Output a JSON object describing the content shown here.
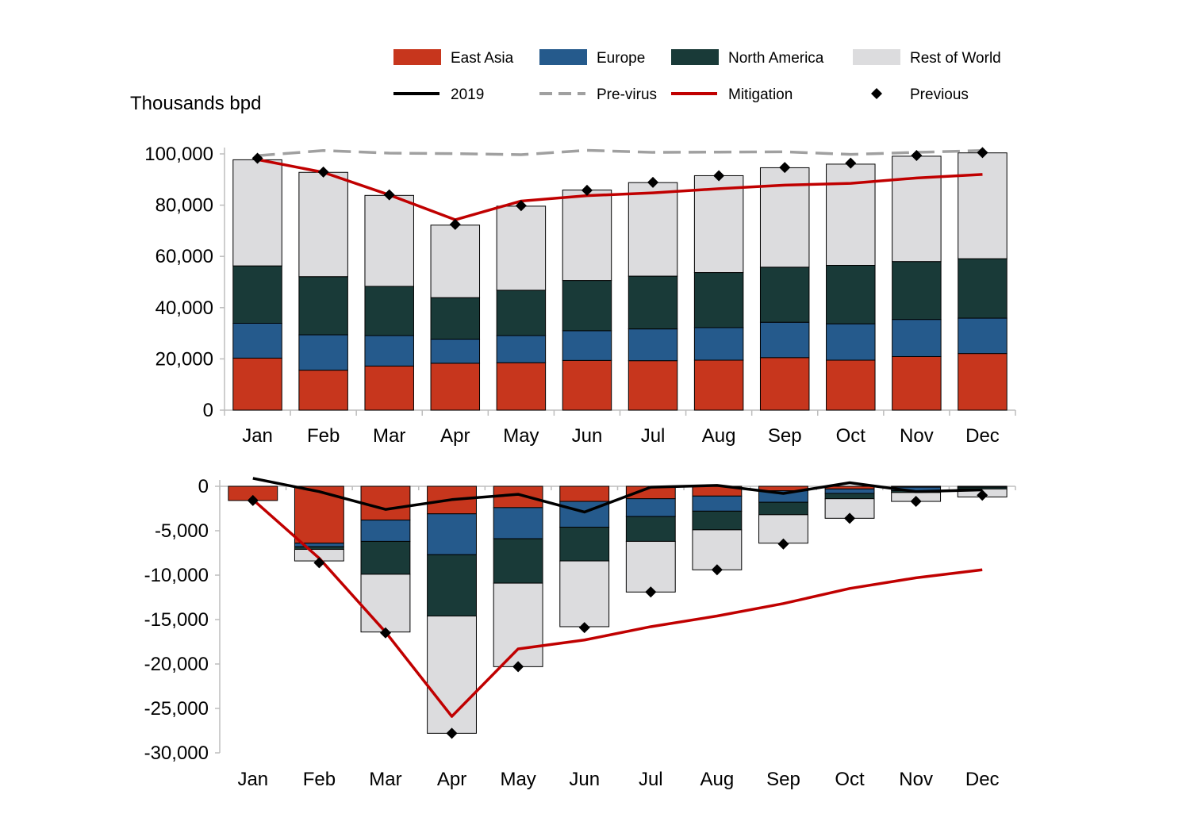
{
  "chart_data": [
    {
      "type": "bar",
      "stacked": true,
      "ylabel": "Thousands bpd",
      "ylim": [
        0,
        100000
      ],
      "yticks": [
        0,
        20000,
        40000,
        60000,
        80000,
        100000
      ],
      "ytick_labels": [
        "0",
        "20,000",
        "40,000",
        "60,000",
        "80,000",
        "100,000"
      ],
      "categories": [
        "Jan",
        "Feb",
        "Mar",
        "Apr",
        "May",
        "Jun",
        "Jul",
        "Aug",
        "Sep",
        "Oct",
        "Nov",
        "Dec"
      ],
      "series": [
        {
          "name": "East Asia",
          "color": "#c7361d",
          "values": [
            20300,
            15600,
            17200,
            18300,
            18500,
            19400,
            19300,
            19500,
            20500,
            19500,
            20900,
            22100
          ]
        },
        {
          "name": "Europe",
          "color": "#255a8c",
          "values": [
            13600,
            13800,
            11900,
            9400,
            10600,
            11600,
            12400,
            12700,
            13800,
            14200,
            14500,
            13800
          ]
        },
        {
          "name": "North America",
          "color": "#193a38",
          "values": [
            22400,
            22700,
            19200,
            16200,
            17700,
            19600,
            20600,
            21500,
            21500,
            22800,
            22600,
            23200
          ]
        },
        {
          "name": "Rest of World",
          "color": "#dcdcde",
          "values": [
            41400,
            40700,
            35500,
            28300,
            32800,
            35300,
            36500,
            37800,
            38800,
            39500,
            41100,
            41300
          ]
        }
      ],
      "lines": [
        {
          "name": "Pre-virus",
          "color": "#a0a0a0",
          "style": "dashed",
          "values": [
            99300,
            101300,
            100300,
            100100,
            99700,
            101400,
            100600,
            100700,
            100800,
            99800,
            100600,
            101300
          ]
        },
        {
          "name": "Mitigation",
          "color": "#c00000",
          "style": "solid",
          "values": [
            97800,
            92800,
            84000,
            74300,
            81600,
            83700,
            84800,
            86400,
            87800,
            88500,
            90600,
            92000
          ]
        }
      ],
      "markers": {
        "name": "Previous",
        "color": "#000000",
        "values": [
          98300,
          92900,
          84000,
          72500,
          79800,
          85800,
          88900,
          91500,
          94700,
          96400,
          99400,
          100500
        ]
      }
    },
    {
      "type": "bar",
      "stacked": true,
      "ylim": [
        -30000,
        0
      ],
      "yticks": [
        0,
        -5000,
        -10000,
        -15000,
        -20000,
        -25000,
        -30000
      ],
      "ytick_labels": [
        "0",
        "-5,000",
        "-10,000",
        "-15,000",
        "-20,000",
        "-25,000",
        "-30,000"
      ],
      "categories": [
        "Jan",
        "Feb",
        "Mar",
        "Apr",
        "May",
        "Jun",
        "Jul",
        "Aug",
        "Sep",
        "Oct",
        "Nov",
        "Dec"
      ],
      "series": [
        {
          "name": "East Asia",
          "color": "#c7361d",
          "values": [
            -1600,
            -6400,
            -3800,
            -3100,
            -2400,
            -1700,
            -1400,
            -1100,
            -500,
            -300,
            -100,
            0
          ]
        },
        {
          "name": "Europe",
          "color": "#255a8c",
          "values": [
            0,
            -400,
            -2400,
            -4600,
            -3500,
            -2900,
            -2000,
            -1700,
            -1300,
            -500,
            -400,
            -100
          ]
        },
        {
          "name": "North America",
          "color": "#193a38",
          "values": [
            0,
            -300,
            -3700,
            -6900,
            -5000,
            -3800,
            -2800,
            -2100,
            -1400,
            -600,
            -200,
            -200
          ]
        },
        {
          "name": "Rest of World",
          "color": "#dcdcde",
          "values": [
            0,
            -1300,
            -6500,
            -13200,
            -9400,
            -7400,
            -5700,
            -4500,
            -3200,
            -2200,
            -1000,
            -900
          ]
        }
      ],
      "lines": [
        {
          "name": "2019",
          "color": "#000000",
          "style": "solid",
          "values": [
            900,
            -600,
            -2600,
            -1500,
            -900,
            -2900,
            -100,
            100,
            -800,
            400,
            -600,
            -400
          ]
        },
        {
          "name": "Mitigation",
          "color": "#c00000",
          "style": "solid",
          "values": [
            -1500,
            -8100,
            -16400,
            -25900,
            -18300,
            -17300,
            -15800,
            -14600,
            -13200,
            -11500,
            -10300,
            -9400
          ]
        }
      ],
      "markers": {
        "name": "Previous",
        "color": "#000000",
        "values": [
          -1600,
          -8600,
          -16500,
          -27800,
          -20300,
          -15900,
          -11900,
          -9400,
          -6500,
          -3600,
          -1700,
          -1000
        ]
      }
    }
  ],
  "legend": {
    "items": [
      {
        "label": "East Asia",
        "kind": "box",
        "color": "#c7361d"
      },
      {
        "label": "Europe",
        "kind": "box",
        "color": "#255a8c"
      },
      {
        "label": "North America",
        "kind": "box",
        "color": "#193a38"
      },
      {
        "label": "Rest of World",
        "kind": "box",
        "color": "#dcdcde"
      },
      {
        "label": "2019",
        "kind": "line",
        "color": "#000000"
      },
      {
        "label": "Pre-virus",
        "kind": "dashed",
        "color": "#a0a0a0"
      },
      {
        "label": "Mitigation",
        "kind": "line",
        "color": "#c00000"
      },
      {
        "label": "Previous",
        "kind": "diamond",
        "color": "#000000"
      }
    ]
  }
}
